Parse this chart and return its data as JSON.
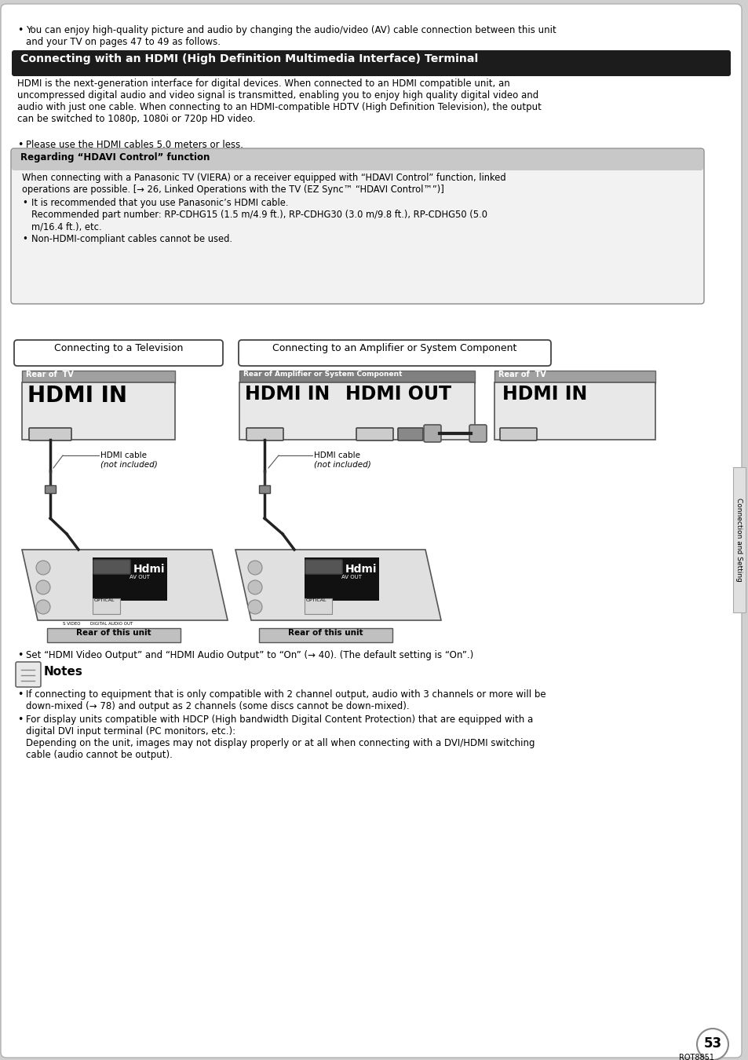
{
  "bg_color": "#d0d0d0",
  "bullet1_line1": "You can enjoy high-quality picture and audio by changing the audio/video (AV) cable connection between this unit",
  "bullet1_line2": "and your TV on pages 47 to 49 as follows.",
  "title_bar_text": "Connecting with an HDMI (High Definition Multimedia Interface) Terminal",
  "body_para": "HDMI is the next-generation interface for digital devices. When connected to an HDMI compatible unit, an\nuncompressed digital audio and video signal is transmitted, enabling you to enjoy high quality digital video and\naudio with just one cable. When connecting to an HDMI-compatible HDTV (High Definition Television), the output\ncan be switched to 1080p, 1080i or 720p HD video.",
  "bullet_hdmi": "Please use the HDMI cables 5.0 meters or less.",
  "hdavi_title": "Regarding “HDAVI Control” function",
  "hdavi_body1": "When connecting with a Panasonic TV (VIERA) or a receiver equipped with “HDAVI Control” function, linked",
  "hdavi_body2": "operations are possible. [→ 26, Linked Operations with the TV (EZ Sync™ “HDAVI Control™”)]",
  "hdavi_b1_line1": "It is recommended that you use Panasonic’s HDMI cable.",
  "hdavi_b1_line2": "Recommended part number: RP-CDHG15 (1.5 m/4.9 ft.), RP-CDHG30 (3.0 m/9.8 ft.), RP-CDHG50 (5.0",
  "hdavi_b1_line3": "m/16.4 ft.), etc.",
  "hdavi_b2": "Non-HDMI-compliant cables cannot be used.",
  "sec_tv": "Connecting to a Television",
  "sec_amp": "Connecting to an Amplifier or System Component",
  "rear_tv_lbl": "Rear of  TV",
  "rear_amp_lbl": "Rear of Amplifier or System Component",
  "rear_tv2_lbl": "Rear of  TV",
  "hdmi_in": "HDMI IN",
  "hdmi_out": "HDMI OUT",
  "hdmi_cable_lbl": "HDMI cable",
  "not_included": "(not included)",
  "rear_unit_lbl": "Rear of this unit",
  "bullet_set": "Set “HDMI Video Output” and “HDMI Audio Output” to “On” (→ 40). (The default setting is “On”.)",
  "notes_title": "Notes",
  "note1_line1": "If connecting to equipment that is only compatible with 2 channel output, audio with 3 channels or more will be",
  "note1_line2": "down-mixed (→ 78) and output as 2 channels (some discs cannot be down-mixed).",
  "note2_line1": "For display units compatible with HDCP (High bandwidth Digital Content Protection) that are equipped with a",
  "note2_line2": "digital DVI input terminal (PC monitors, etc.):",
  "note2_line3": "Depending on the unit, images may not display properly or at all when connecting with a DVI/HDMI switching",
  "note2_line4": "cable (audio cannot be output).",
  "sidebar": "Connection and Setting",
  "page_num": "53",
  "footer": "RQT8851"
}
